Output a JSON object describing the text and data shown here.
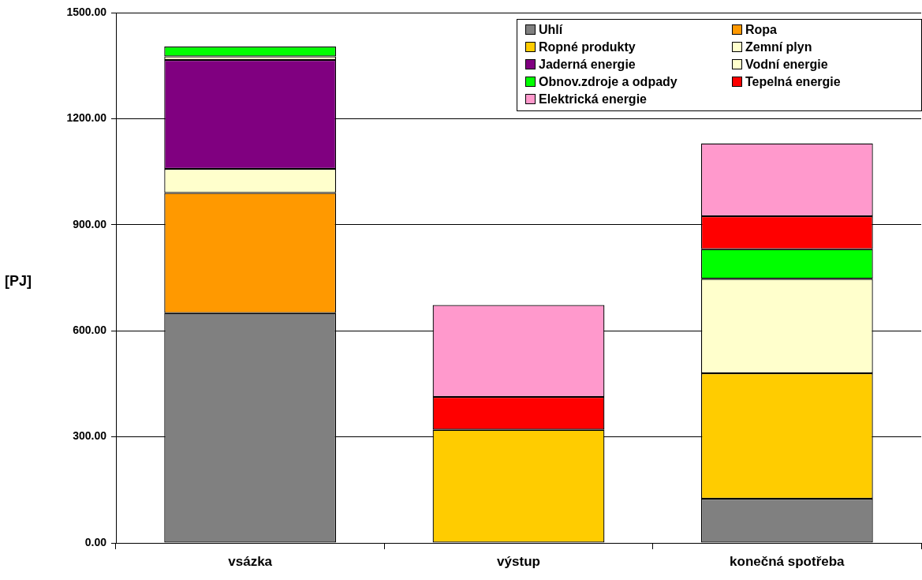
{
  "chart_data": {
    "type": "bar",
    "stacked": true,
    "ylabel": "[PJ]",
    "categories": [
      "vsázka",
      "výstup",
      "konečná spotřeba"
    ],
    "ylim": [
      0,
      1500
    ],
    "yticks": [
      {
        "value": 0,
        "label": "0.00"
      },
      {
        "value": 300,
        "label": "300.00"
      },
      {
        "value": 600,
        "label": "600.00"
      },
      {
        "value": 900,
        "label": "900.00"
      },
      {
        "value": 1200,
        "label": "1200.00"
      },
      {
        "value": 1500,
        "label": "1500.00"
      }
    ],
    "grid": "y",
    "legend": "top right",
    "series": [
      {
        "name": "Uhlí",
        "color": "#808080",
        "values": [
          650,
          null,
          125
        ]
      },
      {
        "name": "Ropa",
        "color": "#ff9900",
        "values": [
          340,
          null,
          null
        ]
      },
      {
        "name": "Ropné produkty",
        "color": "#ffcc00",
        "values": [
          null,
          320,
          355
        ]
      },
      {
        "name": "Zemní plyn",
        "color": "#ffffcc",
        "values": [
          68,
          null,
          267
        ]
      },
      {
        "name": "Jaderná energie",
        "color": "#800080",
        "values": [
          308,
          null,
          null
        ]
      },
      {
        "name": "Vodní energie",
        "color": "#ffffcc",
        "values": [
          10,
          null,
          null
        ]
      },
      {
        "name": "Obnov.zdroje a odpady",
        "color": "#00ff00",
        "values": [
          28,
          null,
          84
        ]
      },
      {
        "name": "Tepelná energie",
        "color": "#ff0000",
        "values": [
          null,
          93,
          93
        ]
      },
      {
        "name": "Elektrická energie",
        "color": "#ff99cc",
        "values": [
          null,
          260,
          206
        ]
      }
    ]
  }
}
